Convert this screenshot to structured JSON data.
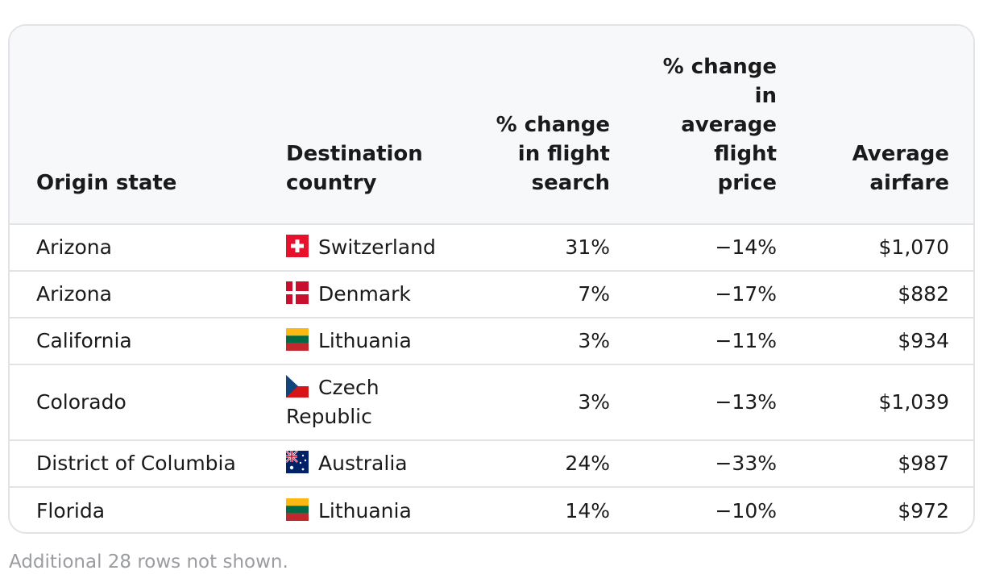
{
  "table": {
    "headers": {
      "origin": "Origin state",
      "destination": "Destination country",
      "search_change": "% change in flight search",
      "price_change": "% change in average flight price",
      "airfare": "Average airfare"
    },
    "rows": [
      {
        "origin": "Arizona",
        "destination": "Switzerland",
        "flag_icon": "switzerland-flag-icon",
        "search_change": "31%",
        "price_change": "−14%",
        "airfare": "$1,070"
      },
      {
        "origin": "Arizona",
        "destination": "Denmark",
        "flag_icon": "denmark-flag-icon",
        "search_change": "7%",
        "price_change": "−17%",
        "airfare": "$882"
      },
      {
        "origin": "California",
        "destination": "Lithuania",
        "flag_icon": "lithuania-flag-icon",
        "search_change": "3%",
        "price_change": "−11%",
        "airfare": "$934"
      },
      {
        "origin": "Colorado",
        "destination": "Czech Republic",
        "flag_icon": "czech-republic-flag-icon",
        "search_change": "3%",
        "price_change": "−13%",
        "airfare": "$1,039"
      },
      {
        "origin": "District of Columbia",
        "destination": "Australia",
        "flag_icon": "australia-flag-icon",
        "search_change": "24%",
        "price_change": "−33%",
        "airfare": "$987"
      },
      {
        "origin": "Florida",
        "destination": "Lithuania",
        "flag_icon": "lithuania-flag-icon",
        "search_change": "14%",
        "price_change": "−10%",
        "airfare": "$972"
      }
    ]
  },
  "footnote": "Additional 28 rows not shown.",
  "colors": {
    "header_bg": "#f7f8fa",
    "border": "#e1e3e6",
    "text": "#1a1a1a",
    "footnote": "#9a9ca0"
  }
}
